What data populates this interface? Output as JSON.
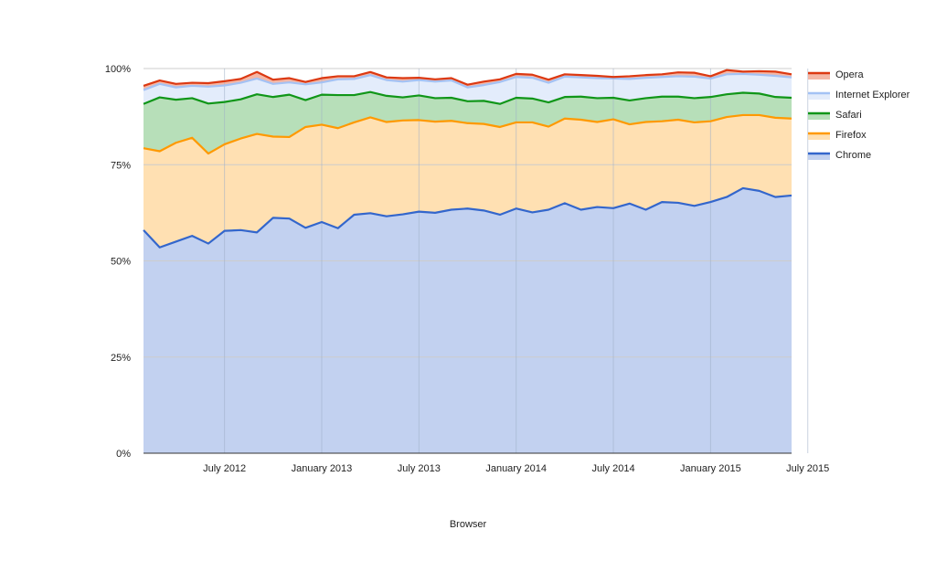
{
  "chart_data": {
    "type": "area",
    "stacked": true,
    "title": "",
    "xlabel": "Browser",
    "ylabel": "",
    "ylim": [
      0,
      100
    ],
    "y_ticks": [
      "0%",
      "25%",
      "50%",
      "75%",
      "100%"
    ],
    "y_tick_values": [
      0,
      25,
      50,
      75,
      100
    ],
    "x_ticks": [
      "July 2012",
      "January 2013",
      "July 2013",
      "January 2014",
      "July 2014",
      "January 2015",
      "July 2015"
    ],
    "x_tick_months": [
      6,
      12,
      18,
      24,
      30,
      36,
      42
    ],
    "x_start": "February 2012",
    "x_end": "July 2015",
    "grid": true,
    "legend_position": "right",
    "series": [
      {
        "name": "Chrome",
        "color": "#3366cc",
        "fill": "#c2d1f0",
        "values": [
          58.0,
          53.5,
          55.0,
          56.5,
          54.5,
          57.8,
          58.0,
          57.4,
          61.2,
          61.0,
          58.6,
          60.1,
          58.5,
          62.0,
          62.4,
          61.6,
          62.1,
          62.8,
          62.5,
          63.3,
          63.6,
          63.1,
          62.0,
          63.6,
          62.6,
          63.3,
          65.0,
          63.3,
          64.0,
          63.7,
          64.9,
          63.3,
          65.3,
          65.1,
          64.3,
          65.3,
          66.6,
          68.9,
          68.2,
          66.6,
          67.0
        ]
      },
      {
        "name": "Firefox",
        "color": "#ff9900",
        "fill": "#ffe0b2",
        "values": [
          21.3,
          25.0,
          25.7,
          25.5,
          23.4,
          22.5,
          23.8,
          25.6,
          21.1,
          21.2,
          26.2,
          25.3,
          26.0,
          24.0,
          24.9,
          24.5,
          24.4,
          23.8,
          23.7,
          23.1,
          22.2,
          22.5,
          22.8,
          22.4,
          23.4,
          21.6,
          22.0,
          23.4,
          22.1,
          23.1,
          20.6,
          22.8,
          21.0,
          21.6,
          21.7,
          21.0,
          20.8,
          19.0,
          19.7,
          20.6,
          20.0
        ]
      },
      {
        "name": "Safari",
        "color": "#109618",
        "fill": "#b7dfb9",
        "values": [
          11.5,
          14.0,
          11.2,
          10.3,
          13.0,
          11.0,
          10.2,
          10.3,
          10.3,
          11.0,
          7.0,
          7.8,
          8.6,
          7.1,
          6.6,
          6.8,
          6.0,
          6.4,
          6.1,
          6.0,
          5.7,
          6.0,
          6.0,
          6.4,
          6.2,
          6.3,
          5.6,
          6.0,
          6.2,
          5.6,
          6.2,
          6.2,
          6.4,
          6.0,
          6.3,
          6.3,
          5.9,
          5.8,
          5.6,
          5.4,
          5.4
        ]
      },
      {
        "name": "Internet Explorer",
        "color": "#a4c2f4",
        "fill": "#e3ecfb",
        "values": [
          3.6,
          3.5,
          3.2,
          3.2,
          4.4,
          4.3,
          4.3,
          4.1,
          3.4,
          3.2,
          4.1,
          3.2,
          4.1,
          4.2,
          4.4,
          4.1,
          4.1,
          4.0,
          4.3,
          4.5,
          3.6,
          4.1,
          5.7,
          5.4,
          5.4,
          5.1,
          5.3,
          5.0,
          5.2,
          5.0,
          5.6,
          5.3,
          5.1,
          5.3,
          5.6,
          4.8,
          5.2,
          4.9,
          4.9,
          5.5,
          5.3
        ]
      },
      {
        "name": "Opera",
        "color": "#dc3912",
        "fill": "#f4b7a6",
        "values": [
          1.1,
          0.9,
          0.9,
          0.8,
          0.9,
          1.1,
          1.0,
          1.7,
          1.1,
          1.1,
          0.6,
          1.1,
          0.8,
          0.7,
          0.8,
          0.7,
          0.9,
          0.6,
          0.6,
          0.6,
          0.7,
          0.9,
          0.7,
          0.8,
          0.8,
          0.8,
          0.6,
          0.6,
          0.6,
          0.4,
          0.7,
          0.7,
          0.7,
          1.0,
          1.0,
          0.6,
          1.1,
          0.6,
          0.9,
          1.1,
          0.8
        ]
      }
    ]
  }
}
